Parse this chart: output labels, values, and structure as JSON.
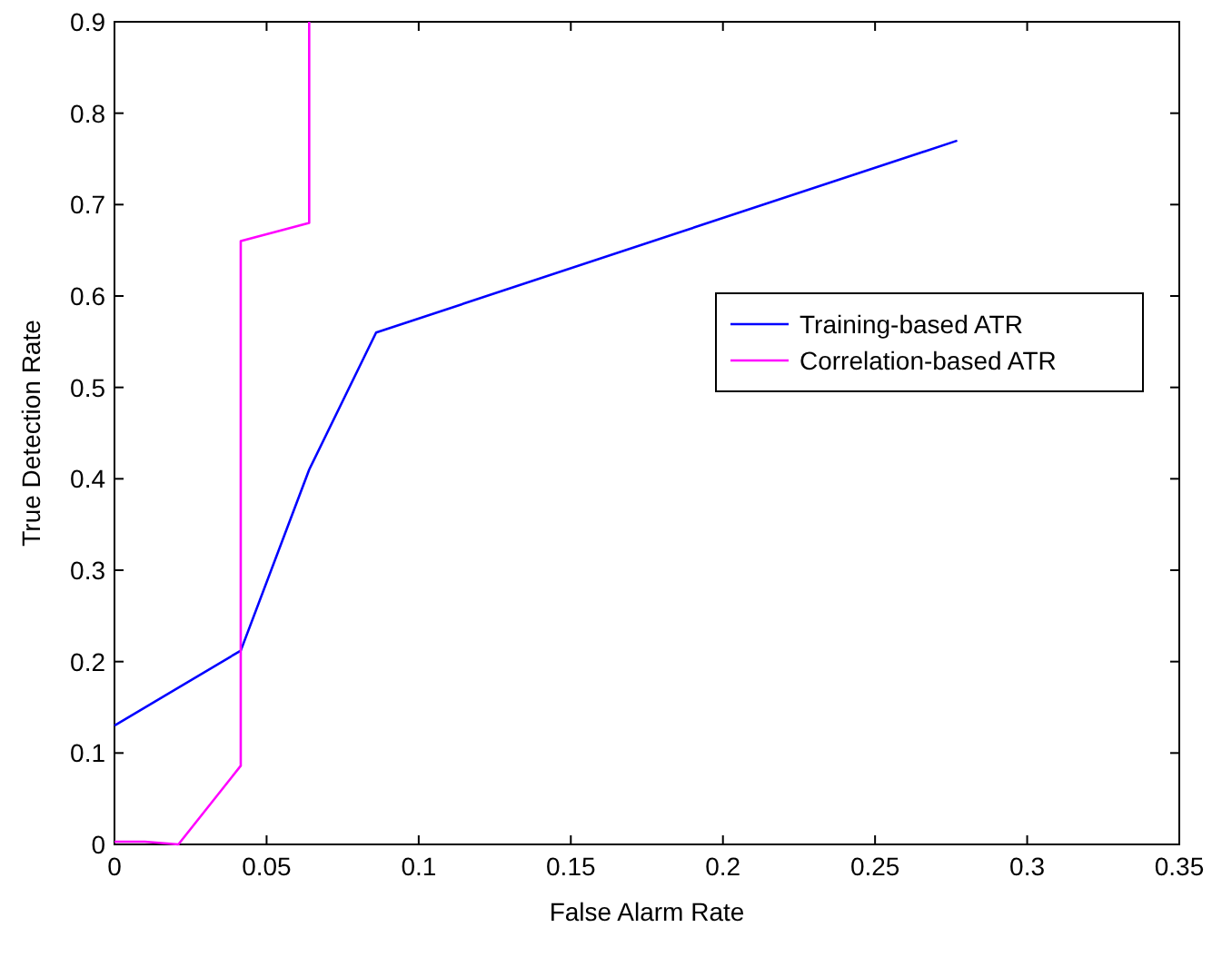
{
  "chart_data": {
    "type": "line",
    "xlabel": "False Alarm Rate",
    "ylabel": "True Detection Rate",
    "xlim": [
      0,
      0.35
    ],
    "xticks": [
      0,
      0.05,
      0.1,
      0.15,
      0.2,
      0.25,
      0.3,
      0.35
    ],
    "ylim": [
      0,
      0.9
    ],
    "yticks": [
      0,
      0.1,
      0.2,
      0.3,
      0.4,
      0.5,
      0.6,
      0.7,
      0.8,
      0.9
    ],
    "legend": "right",
    "grid": false,
    "line_style": "solid",
    "series": [
      {
        "name": "Training-based ATR",
        "color": "#0000ff",
        "x": [
          0,
          0.0415,
          0.064,
          0.086,
          0.277
        ],
        "values": [
          0.13,
          0.212,
          0.41,
          0.56,
          0.77
        ]
      },
      {
        "name": "Correlation-based ATR",
        "color": "#ff00ff",
        "x": [
          0,
          0.01,
          0.021,
          0.0415,
          0.0415,
          0.064,
          0.064
        ],
        "values": [
          0.003,
          0.003,
          0,
          0.086,
          0.66,
          0.68,
          0.9
        ]
      }
    ]
  }
}
